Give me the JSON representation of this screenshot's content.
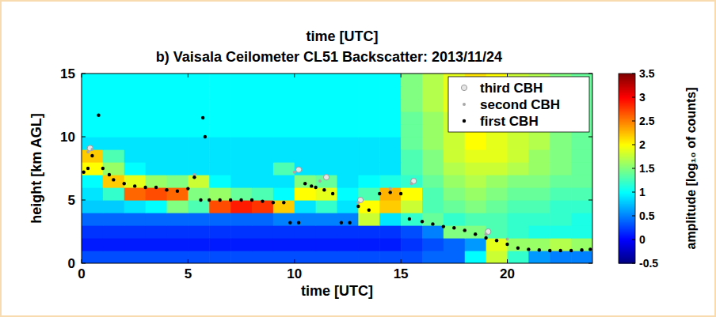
{
  "chart_data": {
    "type": "heatmap",
    "title": "b) Vaisala Ceilometer CL51 Backscatter: 2013/11/24",
    "annotations": [
      {
        "text": "time [UTC]"
      }
    ],
    "x_label": "time [UTC]",
    "y_label": "height [km AGL]",
    "xlim": [
      0,
      24
    ],
    "xticks": [
      0,
      5,
      10,
      15,
      20
    ],
    "ylim": [
      0,
      15
    ],
    "yticks": [
      0,
      5,
      10,
      15
    ],
    "grid": false,
    "legend": "upper right",
    "colorbar": {
      "label": "amplitude [log₁₀ of counts]",
      "range": [
        -0.5,
        3.5
      ],
      "ticks": [
        -0.5,
        0,
        0.5,
        1,
        1.5,
        2,
        2.5,
        3,
        3.5
      ]
    },
    "heatmap": {
      "x_edges": [
        0,
        1,
        2,
        3,
        4,
        5,
        6,
        7,
        8,
        9,
        10,
        11,
        12,
        13,
        14,
        15,
        16,
        17,
        18,
        19,
        20,
        21,
        22,
        23,
        24
      ],
      "y_edges": [
        0,
        1,
        2,
        3,
        4,
        5,
        6,
        7,
        8,
        9,
        10,
        11,
        12,
        13,
        14,
        15
      ],
      "values": [
        [
          0.3,
          0.3,
          0.3,
          0.3,
          0.3,
          0.3,
          0.3,
          0.3,
          0.3,
          0.3,
          0.3,
          0.3,
          0.3,
          0.3,
          0.3,
          0.3,
          0.4,
          0.4,
          1.0,
          1.8,
          1.2,
          0.6,
          0.5,
          0.5
        ],
        [
          0.1,
          0.1,
          0.1,
          0.1,
          0.1,
          0.1,
          0.1,
          0.1,
          0.1,
          0.1,
          0.1,
          0.1,
          0.1,
          0.1,
          0.1,
          0.2,
          0.3,
          0.4,
          0.6,
          1.9,
          1.6,
          1.6,
          1.7,
          1.6
        ],
        [
          0.2,
          0.2,
          0.2,
          0.2,
          0.2,
          0.2,
          0.2,
          0.2,
          0.2,
          0.2,
          0.2,
          0.2,
          0.2,
          0.2,
          0.2,
          0.3,
          0.5,
          1.5,
          1.5,
          1.3,
          1.2,
          1.1,
          1.1,
          1.1
        ],
        [
          0.4,
          0.4,
          0.4,
          0.4,
          0.4,
          0.4,
          0.4,
          0.4,
          0.4,
          0.5,
          0.5,
          0.5,
          0.5,
          1.8,
          0.9,
          1.2,
          1.4,
          1.2,
          1.3,
          1.3,
          1.2,
          1.2,
          1.2,
          1.1
        ],
        [
          0.8,
          0.8,
          0.9,
          1.0,
          1.5,
          1.3,
          2.7,
          2.9,
          2.8,
          2.2,
          0.9,
          1.2,
          0.9,
          2.0,
          2.2,
          1.8,
          1.3,
          1.4,
          1.5,
          1.4,
          1.3,
          1.3,
          1.2,
          1.2
        ],
        [
          0.9,
          1.2,
          2.6,
          2.7,
          2.6,
          1.5,
          1.6,
          1.4,
          1.3,
          1.0,
          2.0,
          1.9,
          1.0,
          1.3,
          2.3,
          2.0,
          1.3,
          1.5,
          1.6,
          1.5,
          1.4,
          1.4,
          1.3,
          1.3
        ],
        [
          1.0,
          2.2,
          1.9,
          1.6,
          1.5,
          1.8,
          1.0,
          0.9,
          0.9,
          0.9,
          1.5,
          1.4,
          0.9,
          1.0,
          1.1,
          1.2,
          1.4,
          1.6,
          1.7,
          1.6,
          1.5,
          1.5,
          1.4,
          1.4
        ],
        [
          2.0,
          1.6,
          1.0,
          0.9,
          0.9,
          0.9,
          0.9,
          0.9,
          0.9,
          1.3,
          0.9,
          0.9,
          0.9,
          0.9,
          0.9,
          1.3,
          1.5,
          1.7,
          1.8,
          1.8,
          1.7,
          1.6,
          1.5,
          1.4
        ],
        [
          2.2,
          1.3,
          0.9,
          0.9,
          0.9,
          0.9,
          0.9,
          0.9,
          0.9,
          0.9,
          0.9,
          0.9,
          0.9,
          0.9,
          0.9,
          1.3,
          1.5,
          1.8,
          1.9,
          1.9,
          1.8,
          1.6,
          1.5,
          1.4
        ],
        [
          0.9,
          0.9,
          0.9,
          0.9,
          0.9,
          0.9,
          0.9,
          0.9,
          0.9,
          0.9,
          0.9,
          0.9,
          0.9,
          0.9,
          0.9,
          1.4,
          1.6,
          1.8,
          2.0,
          1.9,
          1.8,
          1.7,
          1.5,
          1.4
        ],
        [
          1.0,
          1.0,
          1.0,
          1.0,
          1.0,
          1.0,
          1.0,
          1.0,
          1.0,
          1.0,
          1.0,
          1.0,
          1.0,
          1.0,
          1.0,
          1.4,
          1.6,
          1.8,
          2.0,
          1.9,
          1.8,
          1.7,
          1.5,
          1.4
        ],
        [
          1.0,
          1.0,
          1.0,
          1.0,
          1.0,
          1.0,
          1.0,
          1.0,
          1.0,
          1.0,
          1.0,
          1.0,
          1.0,
          1.0,
          1.0,
          1.4,
          1.6,
          1.8,
          2.0,
          1.9,
          1.8,
          1.7,
          1.5,
          1.4
        ],
        [
          1.0,
          1.0,
          1.0,
          1.0,
          1.0,
          1.0,
          1.0,
          1.0,
          1.0,
          1.0,
          1.0,
          1.0,
          1.0,
          1.0,
          1.0,
          1.5,
          1.7,
          1.9,
          2.1,
          2.0,
          1.8,
          1.7,
          1.5,
          1.4
        ],
        [
          1.0,
          1.0,
          1.0,
          1.0,
          1.0,
          1.0,
          1.0,
          1.0,
          1.0,
          1.0,
          1.0,
          1.0,
          1.0,
          1.0,
          1.0,
          1.5,
          1.7,
          1.9,
          2.1,
          2.0,
          1.8,
          1.7,
          1.5,
          1.4
        ],
        [
          1.0,
          1.0,
          1.0,
          1.0,
          1.0,
          1.0,
          1.0,
          1.0,
          1.0,
          1.0,
          1.0,
          1.0,
          1.0,
          1.0,
          1.0,
          1.5,
          1.7,
          1.9,
          2.1,
          2.0,
          1.8,
          1.7,
          1.5,
          1.4
        ]
      ]
    },
    "series": [
      {
        "name": "third CBH",
        "color": "#e6e6e6",
        "marker": "circle",
        "x": [
          0.4,
          10.2,
          11.5,
          13.1,
          15.6,
          19.1
        ],
        "values": [
          9.1,
          7.4,
          6.8,
          5.0,
          6.5,
          2.5
        ]
      },
      {
        "name": "second CBH",
        "color": "#a8a8a8",
        "marker": "dot",
        "x": [
          0.3,
          0.5,
          5.3,
          10.0,
          11.2,
          13.0,
          14.5,
          15.5,
          19.0,
          20.0
        ],
        "values": [
          8.8,
          9.0,
          7.0,
          7.2,
          6.5,
          4.8,
          5.9,
          6.3,
          2.3,
          1.9
        ]
      },
      {
        "name": "first CBH",
        "color": "#000000",
        "marker": "dot",
        "x": [
          0.1,
          0.3,
          0.5,
          0.8,
          1.0,
          1.3,
          1.5,
          2.0,
          2.5,
          3.0,
          3.5,
          4.0,
          4.5,
          5.0,
          5.3,
          5.6,
          5.7,
          5.8,
          6.0,
          6.5,
          7.0,
          7.5,
          8.0,
          8.5,
          9.0,
          9.5,
          9.8,
          10.2,
          10.5,
          10.8,
          11.0,
          11.4,
          11.8,
          12.2,
          12.6,
          13.0,
          13.5,
          14.0,
          14.5,
          15.0,
          15.4,
          16.0,
          16.5,
          17.0,
          17.5,
          18.0,
          18.5,
          19.0,
          19.5,
          20.0,
          20.5,
          21.0,
          21.5,
          22.0,
          22.5,
          23.0,
          23.5,
          23.9
        ],
        "values": [
          7.2,
          7.5,
          8.5,
          11.7,
          7.5,
          7.0,
          6.6,
          6.3,
          6.1,
          6.0,
          6.0,
          5.8,
          5.7,
          5.9,
          6.8,
          5.0,
          11.5,
          10.0,
          5.0,
          5.0,
          5.0,
          5.0,
          5.0,
          4.9,
          4.8,
          4.8,
          3.2,
          3.2,
          6.3,
          6.1,
          6.0,
          5.8,
          5.5,
          3.2,
          3.2,
          4.5,
          4.2,
          5.5,
          5.6,
          5.5,
          3.5,
          3.3,
          3.1,
          2.9,
          2.8,
          2.6,
          2.3,
          2.0,
          1.8,
          1.5,
          1.2,
          1.1,
          1.05,
          1.0,
          1.0,
          1.0,
          1.05,
          1.1
        ]
      }
    ]
  }
}
